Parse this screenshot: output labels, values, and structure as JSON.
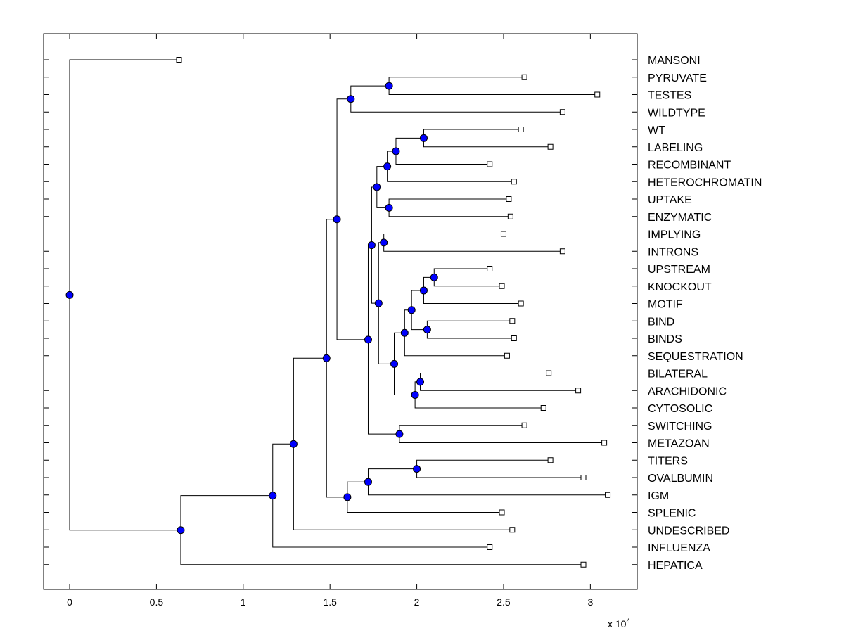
{
  "chart_data": {
    "type": "dendrogram",
    "title": "",
    "xlabel": "",
    "ylabel": "",
    "x_multiplier": "x 10",
    "x_multiplier_exp": "4",
    "xlim": [
      -0.15,
      3.27
    ],
    "xticks": [
      0,
      0.5,
      1,
      1.5,
      2,
      2.5,
      3
    ],
    "xtick_labels": [
      "0",
      "0.5",
      "1",
      "1.5",
      "2",
      "2.5",
      "3"
    ],
    "leaf_marker_color": "#ffffff",
    "node_marker_color": "#0000ff",
    "leaves": [
      {
        "id": "MANSONI",
        "label": "MANSONI",
        "x": 0.63
      },
      {
        "id": "PYRUVATE",
        "label": "PYRUVATE",
        "x": 2.62
      },
      {
        "id": "TESTES",
        "label": "TESTES",
        "x": 3.04
      },
      {
        "id": "WILDTYPE",
        "label": "WILDTYPE",
        "x": 2.84
      },
      {
        "id": "WT",
        "label": "WT",
        "x": 2.6
      },
      {
        "id": "LABELING",
        "label": "LABELING",
        "x": 2.77
      },
      {
        "id": "RECOMBINANT",
        "label": "RECOMBINANT",
        "x": 2.42
      },
      {
        "id": "HETEROCHROMATIN",
        "label": "HETEROCHROMATIN",
        "x": 2.56
      },
      {
        "id": "UPTAKE",
        "label": "UPTAKE",
        "x": 2.53
      },
      {
        "id": "ENZYMATIC",
        "label": "ENZYMATIC",
        "x": 2.54
      },
      {
        "id": "IMPLYING",
        "label": "IMPLYING",
        "x": 2.5
      },
      {
        "id": "INTRONS",
        "label": "INTRONS",
        "x": 2.84
      },
      {
        "id": "UPSTREAM",
        "label": "UPSTREAM",
        "x": 2.42
      },
      {
        "id": "KNOCKOUT",
        "label": "KNOCKOUT",
        "x": 2.49
      },
      {
        "id": "MOTIF",
        "label": "MOTIF",
        "x": 2.6
      },
      {
        "id": "BIND",
        "label": "BIND",
        "x": 2.55
      },
      {
        "id": "BINDS",
        "label": "BINDS",
        "x": 2.56
      },
      {
        "id": "SEQUESTRATION",
        "label": "SEQUESTRATION",
        "x": 2.52
      },
      {
        "id": "BILATERAL",
        "label": "BILATERAL",
        "x": 2.76
      },
      {
        "id": "ARACHIDONIC",
        "label": "ARACHIDONIC",
        "x": 2.93
      },
      {
        "id": "CYTOSOLIC",
        "label": "CYTOSOLIC",
        "x": 2.73
      },
      {
        "id": "SWITCHING",
        "label": "SWITCHING",
        "x": 2.62
      },
      {
        "id": "METAZOAN",
        "label": "METAZOAN",
        "x": 3.08
      },
      {
        "id": "TITERS",
        "label": "TITERS",
        "x": 2.77
      },
      {
        "id": "OVALBUMIN",
        "label": "OVALBUMIN",
        "x": 2.96
      },
      {
        "id": "IGM",
        "label": "IGM",
        "x": 3.1
      },
      {
        "id": "SPLENIC",
        "label": "SPLENIC",
        "x": 2.49
      },
      {
        "id": "UNDESCRIBED",
        "label": "UNDESCRIBED",
        "x": 2.55
      },
      {
        "id": "INFLUENZA",
        "label": "INFLUENZA",
        "x": 2.42
      },
      {
        "id": "HEPATICA",
        "label": "HEPATICA",
        "x": 2.96
      }
    ],
    "nodes": [
      {
        "id": "n_pt",
        "x": 1.84,
        "children": [
          "PYRUVATE",
          "TESTES"
        ]
      },
      {
        "id": "n_ptw",
        "x": 1.62,
        "children": [
          "n_pt",
          "WILDTYPE"
        ]
      },
      {
        "id": "n_wl",
        "x": 2.04,
        "children": [
          "WT",
          "LABELING"
        ]
      },
      {
        "id": "n_wlr",
        "x": 1.88,
        "children": [
          "n_wl",
          "RECOMBINANT"
        ]
      },
      {
        "id": "n_wlrh",
        "x": 1.83,
        "children": [
          "n_wlr",
          "HETEROCHROMATIN"
        ]
      },
      {
        "id": "n_ue",
        "x": 1.84,
        "children": [
          "UPTAKE",
          "ENZYMATIC"
        ]
      },
      {
        "id": "n_top8",
        "x": 1.77,
        "children": [
          "n_wlrh",
          "n_ue"
        ]
      },
      {
        "id": "n_ii",
        "x": 1.81,
        "children": [
          "IMPLYING",
          "INTRONS"
        ]
      },
      {
        "id": "n_uk",
        "x": 2.1,
        "children": [
          "UPSTREAM",
          "KNOCKOUT"
        ]
      },
      {
        "id": "n_ukm",
        "x": 2.04,
        "children": [
          "n_uk",
          "MOTIF"
        ]
      },
      {
        "id": "n_bb",
        "x": 2.06,
        "children": [
          "BIND",
          "BINDS"
        ]
      },
      {
        "id": "n_ukmbb",
        "x": 1.97,
        "children": [
          "n_ukm",
          "n_bb"
        ]
      },
      {
        "id": "n_uks",
        "x": 1.93,
        "children": [
          "n_ukmbb",
          "SEQUESTRATION"
        ]
      },
      {
        "id": "n_ba",
        "x": 2.02,
        "children": [
          "BILATERAL",
          "ARACHIDONIC"
        ]
      },
      {
        "id": "n_bac",
        "x": 1.99,
        "children": [
          "n_ba",
          "CYTOSOLIC"
        ]
      },
      {
        "id": "n_mid",
        "x": 1.87,
        "children": [
          "n_uks",
          "n_bac"
        ]
      },
      {
        "id": "n_mid2",
        "x": 1.78,
        "children": [
          "n_ii",
          "n_mid"
        ]
      },
      {
        "id": "n_blk",
        "x": 1.74,
        "children": [
          "n_top8",
          "n_mid2"
        ]
      },
      {
        "id": "n_sm",
        "x": 1.9,
        "children": [
          "SWITCHING",
          "METAZOAN"
        ]
      },
      {
        "id": "n_blk2",
        "x": 1.72,
        "children": [
          "n_blk",
          "n_sm"
        ]
      },
      {
        "id": "n_up",
        "x": 1.54,
        "children": [
          "n_ptw",
          "n_blk2"
        ]
      },
      {
        "id": "n_to",
        "x": 2.0,
        "children": [
          "TITERS",
          "OVALBUMIN"
        ]
      },
      {
        "id": "n_toi",
        "x": 1.72,
        "children": [
          "n_to",
          "IGM"
        ]
      },
      {
        "id": "n_tois",
        "x": 1.6,
        "children": [
          "n_toi",
          "SPLENIC"
        ]
      },
      {
        "id": "n_big",
        "x": 1.48,
        "children": [
          "n_up",
          "n_tois"
        ]
      },
      {
        "id": "n_bigu",
        "x": 1.29,
        "children": [
          "n_big",
          "UNDESCRIBED"
        ]
      },
      {
        "id": "n_bigi",
        "x": 1.17,
        "children": [
          "n_bigu",
          "INFLUENZA"
        ]
      },
      {
        "id": "n_bigh",
        "x": 0.64,
        "children": [
          "n_bigi",
          "HEPATICA"
        ]
      },
      {
        "id": "n_root",
        "x": 0.0,
        "children": [
          "MANSONI",
          "n_bigh"
        ]
      }
    ]
  }
}
